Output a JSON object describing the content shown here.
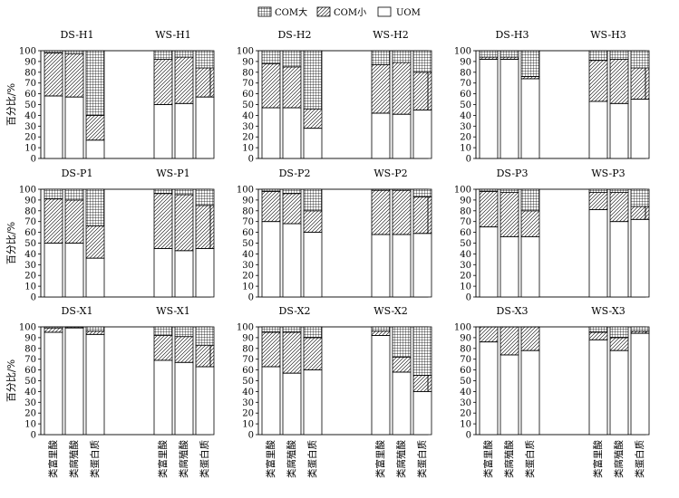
{
  "legend": {
    "position": "top-center",
    "items": [
      {
        "key": "com_large",
        "label": "COM大",
        "pattern": "grid"
      },
      {
        "key": "com_small",
        "label": "COM小",
        "pattern": "hatch"
      },
      {
        "key": "uom",
        "label": "UOM",
        "pattern": "none"
      }
    ]
  },
  "ylabel": "百分比/%",
  "categories": [
    "类富里酸",
    "类腐殖酸",
    "类蛋白质"
  ],
  "chart_data": {
    "type": "bar",
    "stacked": true,
    "ylim": [
      0,
      100
    ],
    "yticks": [
      0,
      10,
      20,
      30,
      40,
      50,
      60,
      70,
      80,
      90,
      100
    ],
    "grid": false,
    "categories": [
      "类富里酸",
      "类腐殖酸",
      "类蛋白质"
    ],
    "series_names": [
      "UOM",
      "COM小",
      "COM大"
    ],
    "panels": [
      {
        "groups": [
          {
            "label": "DS-H1",
            "bars": [
              {
                "uom": 58,
                "com_small": 40,
                "com_large": 2
              },
              {
                "uom": 57,
                "com_small": 40,
                "com_large": 3
              },
              {
                "uom": 17,
                "com_small": 23,
                "com_large": 60
              }
            ]
          },
          {
            "label": "WS-H1",
            "bars": [
              {
                "uom": 50,
                "com_small": 42,
                "com_large": 8
              },
              {
                "uom": 51,
                "com_small": 43,
                "com_large": 6
              },
              {
                "uom": 57,
                "com_small": 27,
                "com_large": 16
              }
            ]
          }
        ]
      },
      {
        "groups": [
          {
            "label": "DS-H2",
            "bars": [
              {
                "uom": 47,
                "com_small": 41,
                "com_large": 12
              },
              {
                "uom": 47,
                "com_small": 38,
                "com_large": 15
              },
              {
                "uom": 28,
                "com_small": 18,
                "com_large": 54
              }
            ]
          },
          {
            "label": "WS-H2",
            "bars": [
              {
                "uom": 42,
                "com_small": 45,
                "com_large": 13
              },
              {
                "uom": 41,
                "com_small": 48,
                "com_large": 11
              },
              {
                "uom": 45,
                "com_small": 35,
                "com_large": 20
              }
            ]
          }
        ]
      },
      {
        "groups": [
          {
            "label": "DS-H3",
            "bars": [
              {
                "uom": 92,
                "com_small": 2,
                "com_large": 6
              },
              {
                "uom": 92,
                "com_small": 2,
                "com_large": 6
              },
              {
                "uom": 74,
                "com_small": 2,
                "com_large": 24
              }
            ]
          },
          {
            "label": "WS-H3",
            "bars": [
              {
                "uom": 53,
                "com_small": 38,
                "com_large": 9
              },
              {
                "uom": 51,
                "com_small": 41,
                "com_large": 8
              },
              {
                "uom": 55,
                "com_small": 29,
                "com_large": 16
              }
            ]
          }
        ]
      },
      {
        "groups": [
          {
            "label": "DS-P1",
            "bars": [
              {
                "uom": 50,
                "com_small": 41,
                "com_large": 9
              },
              {
                "uom": 50,
                "com_small": 40,
                "com_large": 10
              },
              {
                "uom": 36,
                "com_small": 30,
                "com_large": 34
              }
            ]
          },
          {
            "label": "WS-P1",
            "bars": [
              {
                "uom": 45,
                "com_small": 51,
                "com_large": 4
              },
              {
                "uom": 43,
                "com_small": 52,
                "com_large": 5
              },
              {
                "uom": 45,
                "com_small": 40,
                "com_large": 15
              }
            ]
          }
        ]
      },
      {
        "groups": [
          {
            "label": "DS-P2",
            "bars": [
              {
                "uom": 70,
                "com_small": 28,
                "com_large": 2
              },
              {
                "uom": 68,
                "com_small": 28,
                "com_large": 4
              },
              {
                "uom": 60,
                "com_small": 20,
                "com_large": 20
              }
            ]
          },
          {
            "label": "WS-P2",
            "bars": [
              {
                "uom": 58,
                "com_small": 41,
                "com_large": 1
              },
              {
                "uom": 58,
                "com_small": 41,
                "com_large": 1
              },
              {
                "uom": 59,
                "com_small": 34,
                "com_large": 7
              }
            ]
          }
        ]
      },
      {
        "groups": [
          {
            "label": "DS-P3",
            "bars": [
              {
                "uom": 65,
                "com_small": 33,
                "com_large": 2
              },
              {
                "uom": 56,
                "com_small": 41,
                "com_large": 3
              },
              {
                "uom": 56,
                "com_small": 24,
                "com_large": 20
              }
            ]
          },
          {
            "label": "WS-P3",
            "bars": [
              {
                "uom": 81,
                "com_small": 16,
                "com_large": 3
              },
              {
                "uom": 70,
                "com_small": 27,
                "com_large": 3
              },
              {
                "uom": 72,
                "com_small": 12,
                "com_large": 16
              }
            ]
          }
        ]
      },
      {
        "groups": [
          {
            "label": "DS-X1",
            "bars": [
              {
                "uom": 95,
                "com_small": 4,
                "com_large": 1
              },
              {
                "uom": 99,
                "com_small": 1,
                "com_large": 0
              },
              {
                "uom": 93,
                "com_small": 3,
                "com_large": 4
              }
            ]
          },
          {
            "label": "WS-X1",
            "bars": [
              {
                "uom": 69,
                "com_small": 23,
                "com_large": 8
              },
              {
                "uom": 67,
                "com_small": 24,
                "com_large": 9
              },
              {
                "uom": 63,
                "com_small": 20,
                "com_large": 17
              }
            ]
          }
        ]
      },
      {
        "groups": [
          {
            "label": "DS-X2",
            "bars": [
              {
                "uom": 63,
                "com_small": 32,
                "com_large": 5
              },
              {
                "uom": 57,
                "com_small": 38,
                "com_large": 5
              },
              {
                "uom": 60,
                "com_small": 30,
                "com_large": 10
              }
            ]
          },
          {
            "label": "WS-X2",
            "bars": [
              {
                "uom": 92,
                "com_small": 4,
                "com_large": 4
              },
              {
                "uom": 58,
                "com_small": 14,
                "com_large": 28
              },
              {
                "uom": 40,
                "com_small": 15,
                "com_large": 45
              }
            ]
          }
        ]
      },
      {
        "groups": [
          {
            "label": "DS-X3",
            "bars": [
              {
                "uom": 86,
                "com_small": 14,
                "com_large": 0
              },
              {
                "uom": 74,
                "com_small": 26,
                "com_large": 0
              },
              {
                "uom": 78,
                "com_small": 22,
                "com_large": 0
              }
            ]
          },
          {
            "label": "WS-X3",
            "bars": [
              {
                "uom": 88,
                "com_small": 7,
                "com_large": 5
              },
              {
                "uom": 78,
                "com_small": 12,
                "com_large": 10
              },
              {
                "uom": 94,
                "com_small": 2,
                "com_large": 4
              }
            ]
          }
        ]
      }
    ]
  }
}
